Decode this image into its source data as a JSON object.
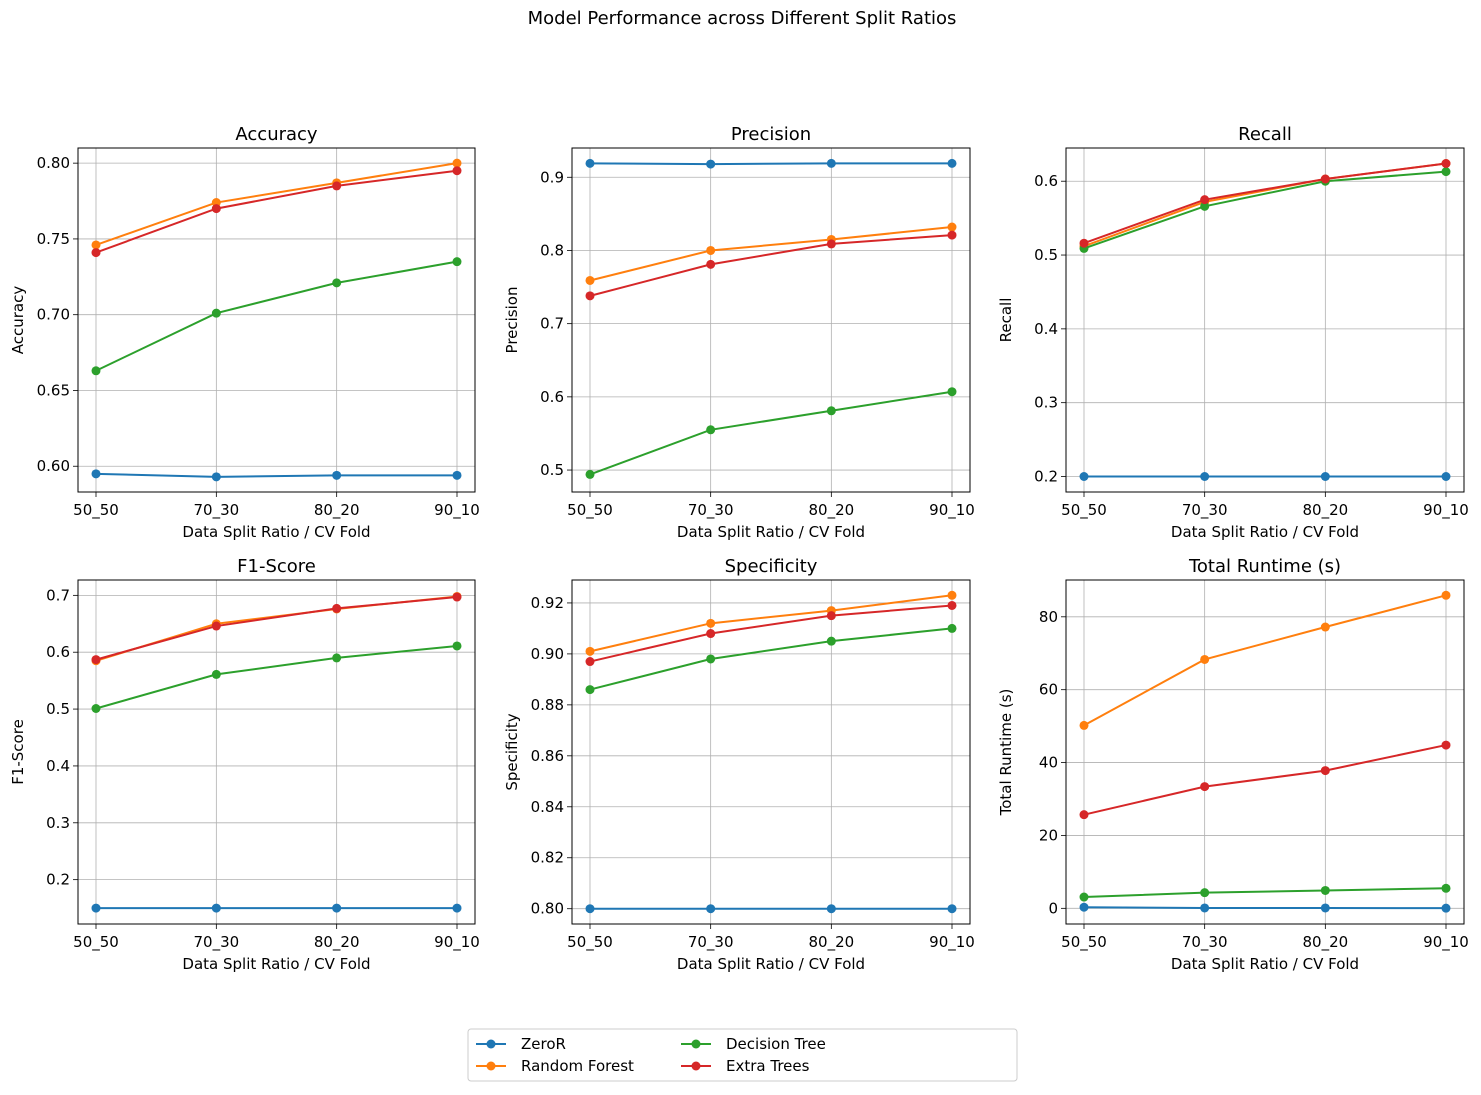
{
  "figure": {
    "title": "Model Performance across Different Split Ratios",
    "legend": [
      "ZeroR",
      "Random Forest",
      "Decision Tree",
      "Extra Trees"
    ],
    "legend_position": "bottom-center",
    "series_colors": {
      "ZeroR": "#1f77b4",
      "Random Forest": "#ff7f0e",
      "Decision Tree": "#2ca02c",
      "Extra Trees": "#d62728"
    }
  },
  "chart_data": [
    {
      "type": "line",
      "title": "Accuracy",
      "xlabel": "Data Split Ratio / CV Fold",
      "ylabel": "Accuracy",
      "categories": [
        "50_50",
        "70_30",
        "80_20",
        "90_10"
      ],
      "ylim": [
        0.583,
        0.81
      ],
      "yticks": [
        0.6,
        0.65,
        0.7,
        0.75,
        0.8
      ],
      "ytick_labels": [
        "0.60",
        "0.65",
        "0.70",
        "0.75",
        "0.80"
      ],
      "grid": true,
      "series": [
        {
          "name": "ZeroR",
          "values": [
            0.595,
            0.593,
            0.594,
            0.594
          ]
        },
        {
          "name": "Random Forest",
          "values": [
            0.746,
            0.774,
            0.787,
            0.8
          ]
        },
        {
          "name": "Decision Tree",
          "values": [
            0.663,
            0.701,
            0.721,
            0.735
          ]
        },
        {
          "name": "Extra Trees",
          "values": [
            0.741,
            0.77,
            0.785,
            0.795
          ]
        }
      ]
    },
    {
      "type": "line",
      "title": "Precision",
      "xlabel": "Data Split Ratio / CV Fold",
      "ylabel": "Precision",
      "categories": [
        "50_50",
        "70_30",
        "80_20",
        "90_10"
      ],
      "ylim": [
        0.47,
        0.94
      ],
      "yticks": [
        0.5,
        0.6,
        0.7,
        0.8,
        0.9
      ],
      "ytick_labels": [
        "0.5",
        "0.6",
        "0.7",
        "0.8",
        "0.9"
      ],
      "grid": true,
      "series": [
        {
          "name": "ZeroR",
          "values": [
            0.919,
            0.918,
            0.919,
            0.919
          ]
        },
        {
          "name": "Random Forest",
          "values": [
            0.759,
            0.8,
            0.815,
            0.832
          ]
        },
        {
          "name": "Decision Tree",
          "values": [
            0.494,
            0.555,
            0.581,
            0.607
          ]
        },
        {
          "name": "Extra Trees",
          "values": [
            0.738,
            0.781,
            0.809,
            0.821
          ]
        }
      ]
    },
    {
      "type": "line",
      "title": "Recall",
      "xlabel": "Data Split Ratio / CV Fold",
      "ylabel": "Recall",
      "categories": [
        "50_50",
        "70_30",
        "80_20",
        "90_10"
      ],
      "ylim": [
        0.179,
        0.645
      ],
      "yticks": [
        0.2,
        0.3,
        0.4,
        0.5,
        0.6
      ],
      "ytick_labels": [
        "0.2",
        "0.3",
        "0.4",
        "0.5",
        "0.6"
      ],
      "grid": true,
      "series": [
        {
          "name": "ZeroR",
          "values": [
            0.2,
            0.2,
            0.2,
            0.2
          ]
        },
        {
          "name": "Random Forest",
          "values": [
            0.512,
            0.572,
            0.603,
            0.624
          ]
        },
        {
          "name": "Decision Tree",
          "values": [
            0.509,
            0.566,
            0.6,
            0.613
          ]
        },
        {
          "name": "Extra Trees",
          "values": [
            0.516,
            0.575,
            0.603,
            0.624
          ]
        }
      ]
    },
    {
      "type": "line",
      "title": "F1-Score",
      "xlabel": "Data Split Ratio / CV Fold",
      "ylabel": "F1-Score",
      "categories": [
        "50_50",
        "70_30",
        "80_20",
        "90_10"
      ],
      "ylim": [
        0.122,
        0.727
      ],
      "yticks": [
        0.2,
        0.3,
        0.4,
        0.5,
        0.6,
        0.7
      ],
      "ytick_labels": [
        "0.2",
        "0.3",
        "0.4",
        "0.5",
        "0.6",
        "0.7"
      ],
      "grid": true,
      "series": [
        {
          "name": "ZeroR",
          "values": [
            0.15,
            0.15,
            0.15,
            0.15
          ]
        },
        {
          "name": "Random Forest",
          "values": [
            0.585,
            0.65,
            0.676,
            0.698
          ]
        },
        {
          "name": "Decision Tree",
          "values": [
            0.501,
            0.561,
            0.59,
            0.611
          ]
        },
        {
          "name": "Extra Trees",
          "values": [
            0.587,
            0.646,
            0.677,
            0.697
          ]
        }
      ]
    },
    {
      "type": "line",
      "title": "Specificity",
      "xlabel": "Data Split Ratio / CV Fold",
      "ylabel": "Specificity",
      "categories": [
        "50_50",
        "70_30",
        "80_20",
        "90_10"
      ],
      "ylim": [
        0.794,
        0.929
      ],
      "yticks": [
        0.8,
        0.82,
        0.84,
        0.86,
        0.88,
        0.9,
        0.92
      ],
      "ytick_labels": [
        "0.80",
        "0.82",
        "0.84",
        "0.86",
        "0.88",
        "0.90",
        "0.92"
      ],
      "grid": true,
      "series": [
        {
          "name": "ZeroR",
          "values": [
            0.8,
            0.8,
            0.8,
            0.8
          ]
        },
        {
          "name": "Random Forest",
          "values": [
            0.901,
            0.912,
            0.917,
            0.923
          ]
        },
        {
          "name": "Decision Tree",
          "values": [
            0.886,
            0.898,
            0.905,
            0.91
          ]
        },
        {
          "name": "Extra Trees",
          "values": [
            0.897,
            0.908,
            0.915,
            0.919
          ]
        }
      ]
    },
    {
      "type": "line",
      "title": "Total Runtime (s)",
      "xlabel": "Data Split Ratio / CV Fold",
      "ylabel": "Total Runtime (s)",
      "categories": [
        "50_50",
        "70_30",
        "80_20",
        "90_10"
      ],
      "ylim": [
        -4.3,
        90.1
      ],
      "yticks": [
        0,
        20,
        40,
        60,
        80
      ],
      "ytick_labels": [
        "0",
        "20",
        "40",
        "60",
        "80"
      ],
      "grid": true,
      "series": [
        {
          "name": "ZeroR",
          "values": [
            0.3,
            0.1,
            0.1,
            0.05
          ]
        },
        {
          "name": "Random Forest",
          "values": [
            50.2,
            68.3,
            77.2,
            85.9
          ]
        },
        {
          "name": "Decision Tree",
          "values": [
            3.1,
            4.3,
            4.9,
            5.5
          ]
        },
        {
          "name": "Extra Trees",
          "values": [
            25.7,
            33.4,
            37.8,
            44.8
          ]
        }
      ]
    }
  ]
}
